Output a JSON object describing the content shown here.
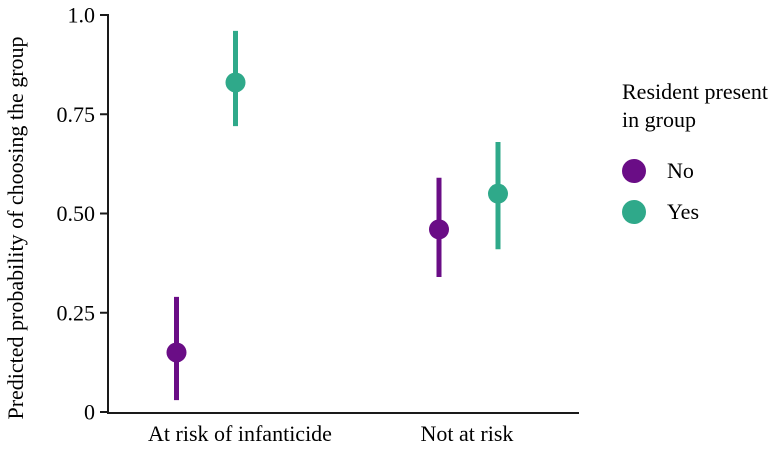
{
  "figure": {
    "background": "#ffffff",
    "axis_color": "#1a1a1a",
    "text_color": "#000000"
  },
  "chart_data": {
    "type": "pointrange",
    "title": "",
    "xlabel": "",
    "ylabel": "Predicted probability of choosing the group",
    "ylim": [
      0,
      1
    ],
    "yticks": [
      0,
      0.25,
      0.5,
      0.75,
      1
    ],
    "ytick_labels": [
      "0",
      "0.25",
      "0.50",
      "0.75",
      "1.0"
    ],
    "categories": [
      "At risk of infanticide",
      "Not at risk"
    ],
    "grid": "off",
    "legend_position": "right",
    "series": [
      {
        "name": "No",
        "color": "#6A0D86",
        "points": [
          {
            "category": "At risk of infanticide",
            "estimate": 0.15,
            "ci_low": 0.03,
            "ci_high": 0.29
          },
          {
            "category": "Not at risk",
            "estimate": 0.46,
            "ci_low": 0.34,
            "ci_high": 0.59
          }
        ]
      },
      {
        "name": "Yes",
        "color": "#2FA98A",
        "points": [
          {
            "category": "At risk of infanticide",
            "estimate": 0.83,
            "ci_low": 0.72,
            "ci_high": 0.96
          },
          {
            "category": "Not at risk",
            "estimate": 0.55,
            "ci_low": 0.41,
            "ci_high": 0.68
          }
        ]
      }
    ]
  },
  "legend": {
    "title_lines": [
      "Resident present",
      "in group"
    ],
    "items": [
      {
        "label": "No",
        "color": "#6A0D86"
      },
      {
        "label": "Yes",
        "color": "#2FA98A"
      }
    ]
  }
}
